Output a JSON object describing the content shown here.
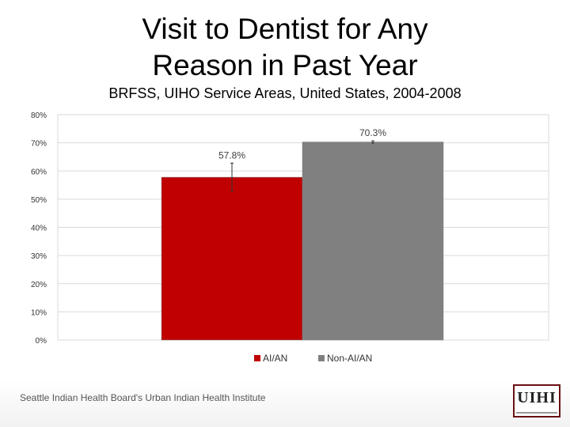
{
  "slide": {
    "title_line1": "Visit to Dentist for Any",
    "title_line2": "Reason in Past Year",
    "subtitle": "BRFSS, UIHO Service Areas, United States, 2004-2008",
    "footer": "Seattle Indian Health Board's Urban Indian Health Institute",
    "logo_text": "UIHI"
  },
  "colors": {
    "aian": "#c00000",
    "non_aian": "#808080",
    "grid": "#d9d9d9",
    "axis_text": "#333333"
  },
  "chart_data": {
    "type": "bar",
    "categories": [
      "AI/AN",
      "Non-AI/AN"
    ],
    "values": [
      57.8,
      70.3
    ],
    "data_labels": [
      "57.8%",
      "70.3%"
    ],
    "error_bars": [
      [
        52.8,
        62.8
      ],
      [
        69.9,
        70.7
      ]
    ],
    "ylim": [
      0,
      80
    ],
    "yticks": [
      0,
      10,
      20,
      30,
      40,
      50,
      60,
      70,
      80
    ],
    "ytick_labels": [
      "0%",
      "10%",
      "20%",
      "30%",
      "40%",
      "50%",
      "60%",
      "70%",
      "80%"
    ],
    "grid": true,
    "legend": [
      "AI/AN",
      "Non-AI/AN"
    ],
    "legend_position": "bottom"
  }
}
